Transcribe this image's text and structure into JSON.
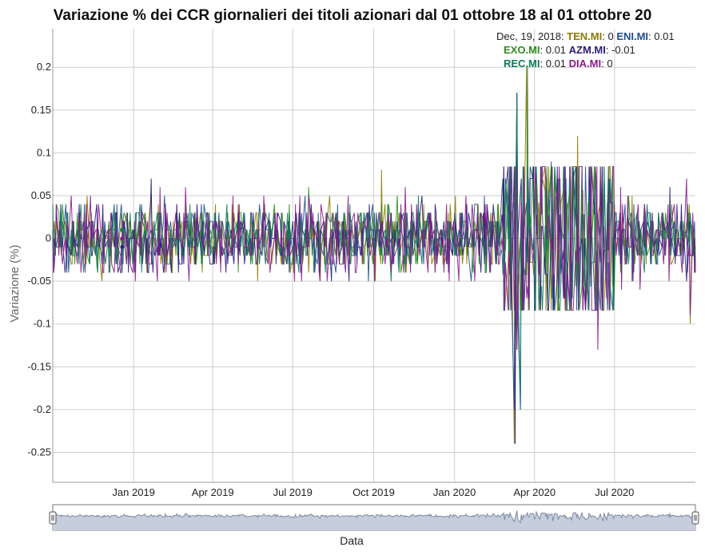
{
  "chart_data": {
    "type": "line",
    "title": "Variazione % dei CCR giornalieri dei titoli azionari dal 01 ottobre 18 al 01 ottobre 20",
    "xlabel": "Data",
    "ylabel": "Variazione (%)",
    "x_range": [
      "2018-10-01",
      "2020-10-01"
    ],
    "ylim": [
      -0.285,
      0.245
    ],
    "y_ticks": [
      0.2,
      0.15,
      0.1,
      0.05,
      0,
      -0.05,
      -0.1,
      -0.15,
      -0.2,
      -0.25
    ],
    "y_tick_labels": [
      "0.2",
      "0.15",
      "0.1",
      "0.05",
      "0",
      "-0.05",
      "-0.1",
      "-0.15",
      "-0.2",
      "-0.25"
    ],
    "x_ticks": [
      "2019-01-01",
      "2019-04-01",
      "2019-07-01",
      "2019-10-01",
      "2020-01-01",
      "2020-04-01",
      "2020-07-01"
    ],
    "x_tick_labels": [
      "Jan 2019",
      "Apr 2019",
      "Jul 2019",
      "Oct 2019",
      "Jan 2020",
      "Apr 2020",
      "Jul 2020"
    ],
    "grid": true,
    "legend_placement": "top-right",
    "legend": {
      "date_label": "Dec, 19, 2018:",
      "entries": [
        {
          "name": "TEN.MI",
          "value": "0"
        },
        {
          "name": "ENI.MI",
          "value": "0.01"
        },
        {
          "name": "EXO.MI",
          "value": "0.01"
        },
        {
          "name": "AZM.MI",
          "value": "-0.01"
        },
        {
          "name": "REC.MI",
          "value": "0.01"
        },
        {
          "name": "DIA.MI",
          "value": "0"
        }
      ]
    },
    "series": [
      {
        "name": "TEN.MI",
        "color": "#8c7a00",
        "typical_abs_change": 0.02,
        "notable_points": [
          [
            "2019-10-10",
            0.08
          ],
          [
            "2020-03-09",
            -0.24
          ],
          [
            "2020-03-23",
            0.2
          ],
          [
            "2020-05-20",
            0.12
          ],
          [
            "2020-09-25",
            -0.1
          ]
        ]
      },
      {
        "name": "ENI.MI",
        "color": "#1f4e8c",
        "typical_abs_change": 0.02,
        "notable_points": [
          [
            "2020-03-09",
            -0.2
          ],
          [
            "2020-03-12",
            0.17
          ],
          [
            "2020-03-16",
            -0.2
          ],
          [
            "2020-04-20",
            0.09
          ]
        ]
      },
      {
        "name": "EXO.MI",
        "color": "#2e8b1e",
        "typical_abs_change": 0.02,
        "notable_points": [
          [
            "2019-07-20",
            0.06
          ],
          [
            "2020-03-12",
            -0.13
          ],
          [
            "2020-03-24",
            0.2
          ]
        ]
      },
      {
        "name": "AZM.MI",
        "color": "#2b1a7a",
        "typical_abs_change": 0.02,
        "notable_points": [
          [
            "2019-01-20",
            0.07
          ],
          [
            "2020-03-10",
            -0.24
          ],
          [
            "2020-03-12",
            0.17
          ]
        ]
      },
      {
        "name": "REC.MI",
        "color": "#0d7a5a",
        "typical_abs_change": 0.02,
        "notable_points": [
          [
            "2018-10-01",
            0.04
          ],
          [
            "2020-03-12",
            0.17
          ],
          [
            "2020-03-16",
            -0.2
          ]
        ]
      },
      {
        "name": "DIA.MI",
        "color": "#8a1a8a",
        "typical_abs_change": 0.025,
        "notable_points": [
          [
            "2020-03-12",
            -0.13
          ],
          [
            "2020-06-12",
            -0.13
          ],
          [
            "2020-09-20",
            0.07
          ],
          [
            "2020-09-25",
            -0.09
          ]
        ]
      }
    ],
    "range_selector_label": "Data"
  }
}
